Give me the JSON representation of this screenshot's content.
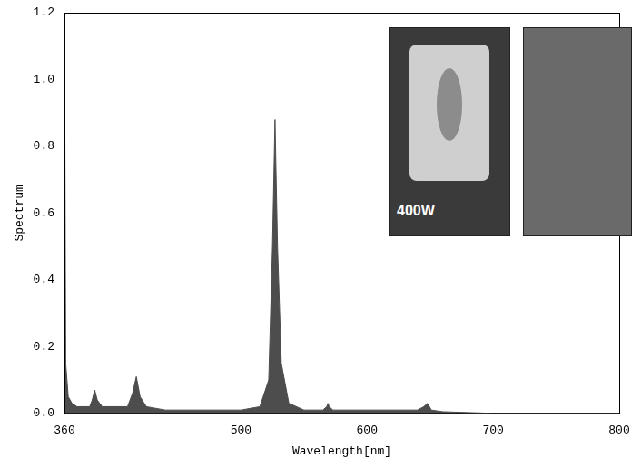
{
  "chart_data": {
    "type": "line",
    "x_label": "Wavelength[nm]",
    "y_label": "Spectrum",
    "annotation": "400W",
    "x": [
      360,
      361,
      363,
      366,
      370,
      380,
      382,
      384,
      386,
      390,
      410,
      414,
      417,
      420,
      425,
      440,
      500,
      515,
      522,
      525,
      527,
      529,
      532,
      538,
      550,
      565,
      568,
      569,
      570,
      573,
      640,
      645,
      648,
      651,
      660,
      700,
      800
    ],
    "values": [
      1.2,
      0.15,
      0.05,
      0.03,
      0.02,
      0.02,
      0.04,
      0.07,
      0.04,
      0.02,
      0.02,
      0.06,
      0.11,
      0.05,
      0.02,
      0.01,
      0.01,
      0.02,
      0.1,
      0.5,
      0.88,
      0.5,
      0.15,
      0.03,
      0.01,
      0.01,
      0.02,
      0.03,
      0.02,
      0.01,
      0.01,
      0.02,
      0.03,
      0.01,
      0.005,
      0.0,
      0.0
    ],
    "color": "#4d4d4d",
    "xlim": [
      360,
      800
    ],
    "xticks": [
      360,
      500,
      600,
      700,
      800
    ],
    "ylim": [
      0,
      1.2
    ],
    "yticks": [
      {
        "value": 0,
        "label": "0.0"
      },
      0.2,
      0.4,
      0.6,
      0.8,
      {
        "value": 1,
        "label": "1.0"
      },
      1.2
    ],
    "grid": false
  }
}
